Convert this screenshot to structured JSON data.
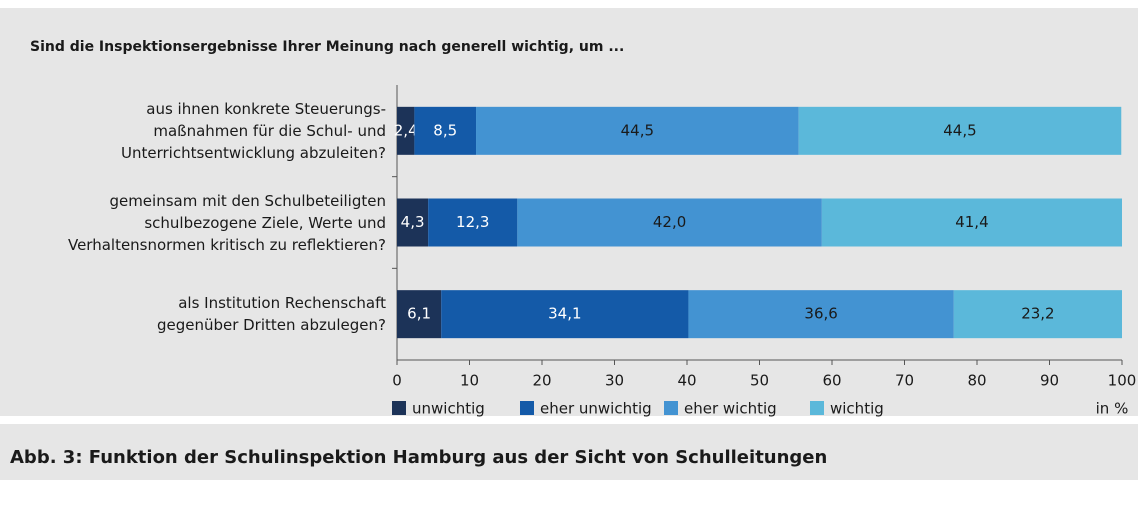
{
  "chart_data": {
    "type": "stacked_barh",
    "title": "Sind die Inspektionsergebnisse Ihrer Meinung nach generell wichtig, um ...",
    "caption": "Abb. 3: Funktion der Schulinspektion Hamburg aus der Sicht von Schulleitungen",
    "categories": [
      "aus ihnen konkrete Steuerungs-\nmaßnahmen für die Schul- und\nUnterrichtsentwicklung abzuleiten?",
      "gemeinsam mit den Schulbeteiligten\nschulbezogene Ziele, Werte und\nVerhaltensnormen kritisch zu reflektieren?",
      "als Institution Rechenschaft\ngegenüber Dritten abzulegen?"
    ],
    "series": [
      {
        "name": "unwichtig",
        "color": "#1c3358",
        "values": [
          2.4,
          4.3,
          6.1
        ],
        "value_labels": [
          "2,4",
          "4,3",
          "6,1"
        ]
      },
      {
        "name": "eher unwichtig",
        "color": "#145aa8",
        "values": [
          8.5,
          12.3,
          34.1
        ],
        "value_labels": [
          "8,5",
          "12,3",
          "34,1"
        ]
      },
      {
        "name": "eher wichtig",
        "color": "#4393d2",
        "values": [
          44.5,
          42.0,
          36.6
        ],
        "value_labels": [
          "44,5",
          "42,0",
          "36,6"
        ]
      },
      {
        "name": "wichtig",
        "color": "#5bb8da",
        "values": [
          44.5,
          41.4,
          23.2
        ],
        "value_labels": [
          "44,5",
          "41,4",
          "23,2"
        ]
      }
    ],
    "xlim": [
      0,
      100
    ],
    "xticks": [
      0,
      10,
      20,
      30,
      40,
      50,
      60,
      70,
      80,
      90,
      100
    ],
    "xlabel": "in %",
    "legend": "bottom"
  }
}
